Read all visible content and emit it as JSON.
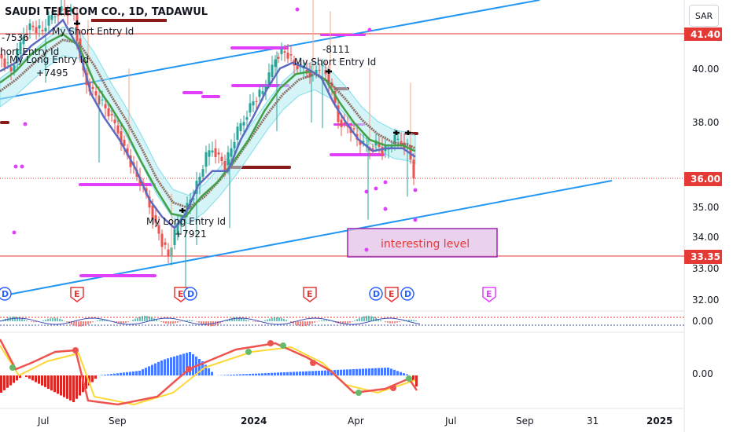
{
  "header": {
    "title": "SAUDI TELECOM CO., 1D, TADAWUL",
    "currency_button": "SAR"
  },
  "price_labels": {
    "upper": "41.40",
    "current": "36.00",
    "lower": "33.35"
  },
  "annotation": "interesting level",
  "event_badges": [
    "D",
    "E",
    "E",
    "D",
    "E",
    "D",
    "E",
    "D",
    "E"
  ],
  "colors": {
    "up": "#26a69a",
    "down": "#ef5350",
    "trend": "#2196f3",
    "magenta": "#e040fb",
    "level_fill": "#e1bee7",
    "level_border": "#9c27b0",
    "red_level": "#e53935"
  },
  "chart_data": {
    "type": "candlestick",
    "ylim": [
      31.7,
      42.5
    ],
    "y_ticks": [
      "40.00",
      "38.00",
      "36.00",
      "35.00",
      "34.00",
      "33.00",
      "32.00"
    ],
    "x_ticks": [
      "Jul",
      "Sep",
      "2024",
      "Apr",
      "Jul",
      "Sep",
      "31",
      "2025"
    ],
    "horizontal_levels": [
      41.4,
      36.0,
      33.35
    ],
    "oscillator_1_tick": "0.00",
    "oscillator_2_tick": "0.00",
    "strategy_labels": [
      {
        "text": "-7536"
      },
      {
        "text": "My Short Entry Id"
      },
      {
        "text": "hort Entry Id"
      },
      {
        "text": "My Long Entry Id"
      },
      {
        "text": "+7495"
      },
      {
        "text": "-8111"
      },
      {
        "text": "My Short Entry Id"
      },
      {
        "text": "My Long Entry Id"
      },
      {
        "text": "+7921"
      }
    ],
    "price_path": [
      [
        0,
        40.6
      ],
      [
        8,
        40.3
      ],
      [
        16,
        40.0
      ],
      [
        24,
        40.6
      ],
      [
        32,
        41.3
      ],
      [
        40,
        41.6
      ],
      [
        48,
        41.5
      ],
      [
        56,
        41.4
      ],
      [
        64,
        41.8
      ],
      [
        72,
        42.0
      ],
      [
        80,
        42.2
      ],
      [
        88,
        42.1
      ],
      [
        96,
        42.0
      ],
      [
        104,
        40.3
      ],
      [
        112,
        39.6
      ],
      [
        120,
        39.3
      ],
      [
        128,
        39.0
      ],
      [
        136,
        38.7
      ],
      [
        144,
        38.3
      ],
      [
        152,
        37.9
      ],
      [
        160,
        37.3
      ],
      [
        168,
        36.8
      ],
      [
        176,
        36.3
      ],
      [
        184,
        35.9
      ],
      [
        192,
        35.3
      ],
      [
        200,
        34.6
      ],
      [
        208,
        34.0
      ],
      [
        216,
        33.5
      ],
      [
        224,
        34.3
      ],
      [
        232,
        34.9
      ],
      [
        240,
        35.3
      ],
      [
        248,
        35.7
      ],
      [
        256,
        36.3
      ],
      [
        264,
        37.0
      ],
      [
        272,
        37.3
      ],
      [
        280,
        37.0
      ],
      [
        288,
        36.7
      ],
      [
        296,
        37.3
      ],
      [
        304,
        37.9
      ],
      [
        312,
        38.3
      ],
      [
        320,
        38.8
      ],
      [
        328,
        39.1
      ],
      [
        336,
        39.3
      ],
      [
        344,
        39.8
      ],
      [
        352,
        40.5
      ],
      [
        360,
        40.7
      ],
      [
        368,
        40.6
      ],
      [
        376,
        40.2
      ],
      [
        384,
        40.1
      ],
      [
        392,
        40.0
      ],
      [
        400,
        39.9
      ],
      [
        408,
        40.2
      ],
      [
        416,
        39.9
      ],
      [
        424,
        39.3
      ],
      [
        432,
        38.3
      ],
      [
        440,
        38.1
      ],
      [
        448,
        38.0
      ],
      [
        456,
        37.6
      ],
      [
        464,
        37.4
      ],
      [
        472,
        37.3
      ],
      [
        480,
        37.5
      ],
      [
        488,
        37.2
      ],
      [
        496,
        37.3
      ],
      [
        504,
        37.6
      ],
      [
        512,
        37.5
      ],
      [
        520,
        37.4
      ],
      [
        528,
        36.4
      ]
    ],
    "ma_fast": [
      [
        0,
        40.0
      ],
      [
        20,
        40.3
      ],
      [
        40,
        40.9
      ],
      [
        60,
        41.3
      ],
      [
        80,
        41.8
      ],
      [
        100,
        40.8
      ],
      [
        116,
        39.2
      ],
      [
        132,
        38.4
      ],
      [
        152,
        37.6
      ],
      [
        172,
        36.6
      ],
      [
        190,
        35.5
      ],
      [
        206,
        34.9
      ],
      [
        222,
        34.5
      ],
      [
        236,
        35.0
      ],
      [
        252,
        36.0
      ],
      [
        270,
        36.5
      ],
      [
        290,
        36.5
      ],
      [
        306,
        37.6
      ],
      [
        322,
        38.4
      ],
      [
        340,
        39.4
      ],
      [
        356,
        40.1
      ],
      [
        372,
        40.3
      ],
      [
        390,
        40.1
      ],
      [
        408,
        39.8
      ],
      [
        424,
        38.9
      ],
      [
        440,
        38.2
      ],
      [
        456,
        37.6
      ],
      [
        474,
        37.2
      ],
      [
        492,
        37.3
      ],
      [
        512,
        37.3
      ],
      [
        528,
        37.0
      ]
    ],
    "ma_mid": [
      [
        0,
        39.6
      ],
      [
        20,
        40.0
      ],
      [
        40,
        40.6
      ],
      [
        60,
        41.0
      ],
      [
        80,
        41.3
      ],
      [
        100,
        40.9
      ],
      [
        120,
        39.6
      ],
      [
        140,
        38.8
      ],
      [
        160,
        37.9
      ],
      [
        180,
        36.8
      ],
      [
        200,
        35.8
      ],
      [
        218,
        35.0
      ],
      [
        236,
        34.9
      ],
      [
        256,
        35.6
      ],
      [
        276,
        36.1
      ],
      [
        296,
        36.8
      ],
      [
        316,
        37.6
      ],
      [
        336,
        38.6
      ],
      [
        356,
        39.4
      ],
      [
        376,
        39.9
      ],
      [
        396,
        40.0
      ],
      [
        414,
        39.7
      ],
      [
        432,
        38.9
      ],
      [
        450,
        38.2
      ],
      [
        470,
        37.6
      ],
      [
        490,
        37.4
      ],
      [
        512,
        37.4
      ],
      [
        528,
        37.2
      ]
    ],
    "ma_slow": [
      [
        0,
        39.3
      ],
      [
        20,
        39.7
      ],
      [
        40,
        40.2
      ],
      [
        60,
        40.7
      ],
      [
        80,
        41.1
      ],
      [
        100,
        41.0
      ],
      [
        120,
        40.2
      ],
      [
        140,
        39.2
      ],
      [
        160,
        38.3
      ],
      [
        180,
        37.3
      ],
      [
        200,
        36.2
      ],
      [
        220,
        35.4
      ],
      [
        240,
        35.2
      ],
      [
        260,
        35.6
      ],
      [
        280,
        36.2
      ],
      [
        300,
        36.9
      ],
      [
        320,
        37.7
      ],
      [
        340,
        38.5
      ],
      [
        360,
        39.2
      ],
      [
        380,
        39.7
      ],
      [
        400,
        39.9
      ],
      [
        420,
        39.6
      ],
      [
        440,
        39.0
      ],
      [
        460,
        38.3
      ],
      [
        480,
        37.8
      ],
      [
        500,
        37.5
      ],
      [
        520,
        37.4
      ],
      [
        528,
        37.3
      ]
    ]
  }
}
